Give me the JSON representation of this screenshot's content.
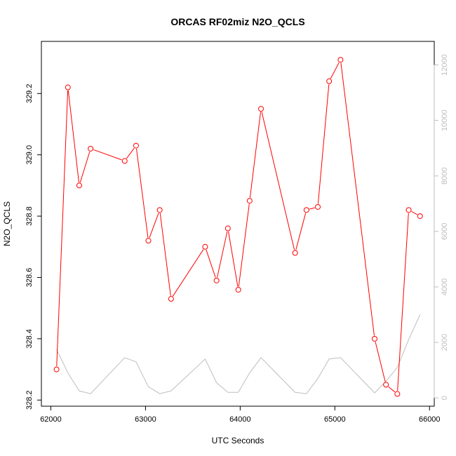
{
  "chart_data": {
    "type": "line",
    "title": "ORCAS RF02miz N2O_QCLS",
    "xlabel": "UTC Seconds",
    "ylabel": "N2O_QCLS",
    "xlim": [
      61900,
      66050
    ],
    "ylim": [
      328.18,
      329.37
    ],
    "y2lim": [
      -300,
      12850
    ],
    "x_ticks": [
      62000,
      63000,
      64000,
      65000,
      66000
    ],
    "y_ticks": [
      328.2,
      328.4,
      328.6,
      328.8,
      329.0,
      329.2
    ],
    "y2_ticks": [
      0,
      2000,
      4000,
      6000,
      8000,
      10000,
      12000
    ],
    "series": [
      {
        "axis": "left",
        "color": "#ff0000",
        "markers": "open-circle",
        "x": [
          62060,
          62180,
          62300,
          62420,
          62780,
          62900,
          63030,
          63150,
          63270,
          63630,
          63750,
          63870,
          63980,
          64100,
          64220,
          64580,
          64700,
          64820,
          64940,
          65060,
          65420,
          65540,
          65660,
          65780,
          65900
        ],
        "y": [
          328.3,
          329.22,
          328.9,
          329.02,
          328.98,
          329.03,
          328.72,
          328.82,
          328.53,
          328.7,
          328.59,
          328.76,
          328.56,
          328.85,
          329.15,
          328.68,
          328.82,
          328.83,
          329.24,
          329.31,
          328.4,
          328.25,
          328.22,
          328.82,
          328.8
        ]
      },
      {
        "axis": "right",
        "color": "#bebebe",
        "markers": "none",
        "x": [
          62060,
          62180,
          62300,
          62420,
          62780,
          62900,
          63030,
          63150,
          63270,
          63630,
          63750,
          63870,
          63980,
          64100,
          64220,
          64580,
          64700,
          64820,
          64940,
          65060,
          65420,
          65540,
          65660,
          65780,
          65900
        ],
        "y": [
          1750,
          900,
          250,
          150,
          1450,
          1300,
          400,
          150,
          250,
          1400,
          550,
          200,
          200,
          900,
          1450,
          200,
          150,
          700,
          1400,
          1450,
          180,
          600,
          1100,
          2100,
          3000
        ]
      }
    ]
  }
}
